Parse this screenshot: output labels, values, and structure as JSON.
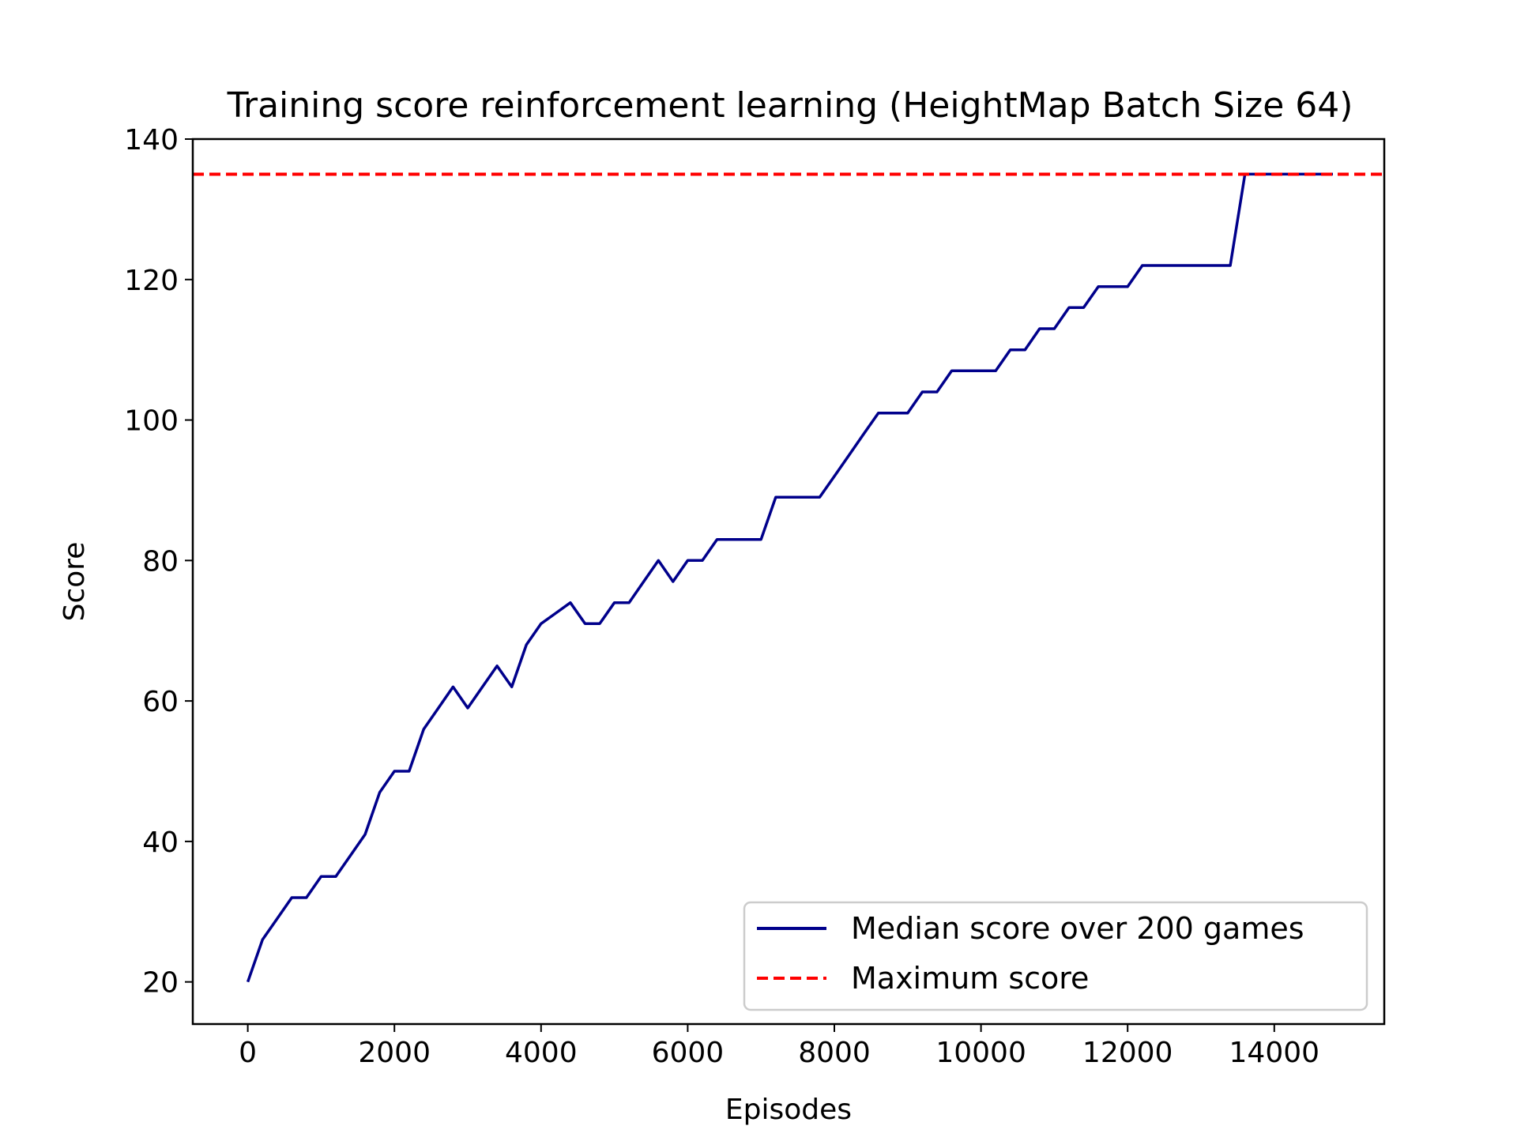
{
  "chart_data": {
    "type": "line",
    "title": "Training score reinforcement learning (HeightMap Batch Size 64)",
    "xlabel": "Episodes",
    "ylabel": "Score",
    "xlim": [
      -750,
      15500
    ],
    "ylim": [
      14,
      140
    ],
    "xticks": [
      0,
      2000,
      4000,
      6000,
      8000,
      10000,
      12000,
      14000
    ],
    "yticks": [
      20,
      40,
      60,
      80,
      100,
      120,
      140
    ],
    "grid": false,
    "legend_position": "lower-right",
    "series": [
      {
        "name": "Median score over 200 games",
        "color": "#00008b",
        "style": "solid",
        "x": [
          0,
          200,
          400,
          600,
          800,
          1000,
          1200,
          1400,
          1600,
          1800,
          2000,
          2200,
          2400,
          2600,
          2800,
          3000,
          3200,
          3400,
          3600,
          3800,
          4000,
          4200,
          4400,
          4600,
          4800,
          5000,
          5200,
          5400,
          5600,
          5800,
          6000,
          6200,
          6400,
          6600,
          6800,
          7000,
          7200,
          7400,
          7600,
          7800,
          8000,
          8200,
          8400,
          8600,
          8800,
          9000,
          9200,
          9400,
          9600,
          9800,
          10000,
          10200,
          10400,
          10600,
          10800,
          11000,
          11200,
          11400,
          11600,
          11800,
          12000,
          12200,
          12400,
          12600,
          12800,
          13000,
          13200,
          13400,
          13600,
          13800,
          14000,
          14200,
          14400,
          14600,
          14800
        ],
        "y": [
          20,
          26,
          29,
          32,
          32,
          35,
          35,
          38,
          41,
          47,
          50,
          50,
          56,
          59,
          62,
          59,
          62,
          65,
          62,
          68,
          71,
          72.5,
          74,
          71,
          71,
          74,
          74,
          77,
          80,
          77,
          80,
          80,
          83,
          83,
          83,
          83,
          89,
          89,
          89,
          89,
          92,
          95,
          98,
          101,
          101,
          101,
          104,
          104,
          107,
          107,
          107,
          107,
          110,
          110,
          113,
          113,
          116,
          116,
          119,
          119,
          119,
          122,
          122,
          122,
          122,
          122,
          122,
          122,
          135,
          135,
          135,
          135,
          135,
          135,
          135
        ]
      },
      {
        "name": "Maximum score",
        "color": "#ff0000",
        "style": "dashed",
        "y_constant": 135
      }
    ]
  }
}
